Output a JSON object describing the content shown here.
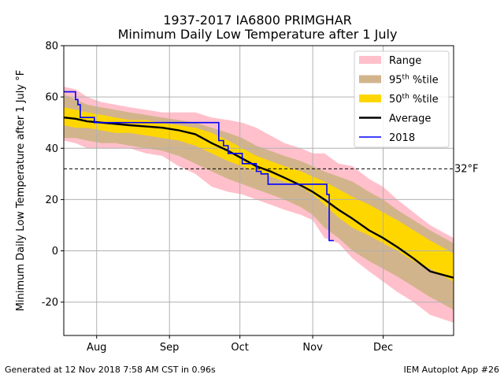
{
  "chart_data": {
    "type": "area",
    "title": "1937-2017 IA6800 PRIMGHAR",
    "subtitle": "Minimum Daily Low Temperature after 1 July",
    "xlabel": "",
    "ylabel": "Minimum Daily Low Temperature after 1 July °F",
    "ylim": [
      -33,
      80
    ],
    "yticks": [
      -20,
      0,
      20,
      40,
      60,
      80
    ],
    "xrange": [
      "2018-07-18",
      "2018-12-31"
    ],
    "xticks": [
      {
        "date": "2018-08-01",
        "label": "Aug"
      },
      {
        "date": "2018-09-01",
        "label": "Sep"
      },
      {
        "date": "2018-10-01",
        "label": "Oct"
      },
      {
        "date": "2018-11-01",
        "label": "Nov"
      },
      {
        "date": "2018-12-01",
        "label": "Dec"
      }
    ],
    "grid": true,
    "legend_position": "top-right",
    "reference_line": {
      "y": 32,
      "label": "32°F"
    },
    "colors": {
      "range": "#ffc0cb",
      "p95": "#d2b48c",
      "p50": "#ffd700",
      "average": "#000000",
      "current": "#0000ff"
    },
    "legend": [
      {
        "key": "range",
        "label": "Range",
        "kind": "patch"
      },
      {
        "key": "p95",
        "label": "95th %tile",
        "sup": "th",
        "kind": "patch"
      },
      {
        "key": "p50",
        "label": "50th %tile",
        "sup": "th",
        "kind": "patch"
      },
      {
        "key": "average",
        "label": "Average",
        "kind": "line"
      },
      {
        "key": "current",
        "label": "2018",
        "kind": "line"
      }
    ],
    "series": [
      {
        "name": "Range",
        "key": "range",
        "x": [
          "2018-07-18",
          "2018-07-23",
          "2018-07-28",
          "2018-08-03",
          "2018-08-09",
          "2018-08-15",
          "2018-08-22",
          "2018-08-29",
          "2018-09-05",
          "2018-09-12",
          "2018-09-19",
          "2018-09-26",
          "2018-10-02",
          "2018-10-08",
          "2018-10-14",
          "2018-10-20",
          "2018-10-27",
          "2018-11-01",
          "2018-11-06",
          "2018-11-12",
          "2018-11-18",
          "2018-11-25",
          "2018-12-01",
          "2018-12-07",
          "2018-12-14",
          "2018-12-21",
          "2018-12-31"
        ],
        "low": [
          43,
          42,
          40,
          40,
          40,
          40,
          38,
          37,
          33,
          30,
          25,
          23,
          22,
          20,
          18,
          16,
          14,
          12,
          5,
          3,
          -3,
          -8,
          -12,
          -16,
          -20,
          -25,
          -28
        ],
        "high": [
          64,
          63,
          60,
          58,
          57,
          56,
          55,
          54,
          54,
          54,
          52,
          51,
          50,
          48,
          45,
          42,
          40,
          38,
          38,
          34,
          33,
          28,
          25,
          20,
          15,
          10,
          5
        ]
      },
      {
        "name": "95th %tile",
        "key": "p95",
        "x": [
          "2018-07-18",
          "2018-07-23",
          "2018-07-28",
          "2018-08-03",
          "2018-08-09",
          "2018-08-15",
          "2018-08-22",
          "2018-08-29",
          "2018-09-05",
          "2018-09-12",
          "2018-09-19",
          "2018-09-26",
          "2018-10-02",
          "2018-10-08",
          "2018-10-14",
          "2018-10-20",
          "2018-10-27",
          "2018-11-01",
          "2018-11-06",
          "2018-11-12",
          "2018-11-18",
          "2018-11-25",
          "2018-12-01",
          "2018-12-07",
          "2018-12-14",
          "2018-12-21",
          "2018-12-31"
        ],
        "low": [
          44,
          44,
          43,
          42,
          42,
          41,
          40,
          39,
          37,
          34,
          31,
          28,
          26,
          24,
          22,
          20,
          17,
          14,
          9,
          5,
          0,
          -4,
          -7,
          -10,
          -14,
          -18,
          -23
        ],
        "high": [
          61,
          59,
          57,
          56,
          55,
          54,
          53,
          52,
          51,
          50,
          48,
          46,
          44,
          41,
          39,
          37,
          35,
          33,
          31,
          29,
          27,
          23,
          20,
          16,
          12,
          8,
          3
        ]
      },
      {
        "name": "50th %tile",
        "key": "p50",
        "x": [
          "2018-07-18",
          "2018-07-23",
          "2018-07-28",
          "2018-08-03",
          "2018-08-09",
          "2018-08-15",
          "2018-08-22",
          "2018-08-29",
          "2018-09-05",
          "2018-09-12",
          "2018-09-19",
          "2018-09-26",
          "2018-10-02",
          "2018-10-08",
          "2018-10-14",
          "2018-10-20",
          "2018-10-27",
          "2018-11-01",
          "2018-11-06",
          "2018-11-12",
          "2018-11-18",
          "2018-11-25",
          "2018-12-01",
          "2018-12-07",
          "2018-12-14",
          "2018-12-21",
          "2018-12-31"
        ],
        "low": [
          49,
          48,
          48,
          47,
          46,
          46,
          45,
          44,
          43,
          41,
          38,
          35,
          33,
          31,
          29,
          27,
          25,
          22,
          18,
          13,
          9,
          6,
          3,
          0,
          -4,
          -7,
          -12
        ],
        "high": [
          56,
          55,
          54,
          53,
          52,
          51,
          51,
          50,
          49,
          48,
          46,
          43,
          40,
          37,
          35,
          33,
          31,
          29,
          27,
          24,
          21,
          18,
          15,
          12,
          8,
          4,
          -1
        ]
      },
      {
        "name": "Average",
        "key": "average",
        "x": [
          "2018-07-18",
          "2018-07-23",
          "2018-07-28",
          "2018-08-03",
          "2018-08-09",
          "2018-08-15",
          "2018-08-22",
          "2018-08-29",
          "2018-09-05",
          "2018-09-12",
          "2018-09-19",
          "2018-09-26",
          "2018-10-02",
          "2018-10-08",
          "2018-10-14",
          "2018-10-20",
          "2018-10-27",
          "2018-11-01",
          "2018-11-06",
          "2018-11-12",
          "2018-11-18",
          "2018-11-25",
          "2018-12-01",
          "2018-12-07",
          "2018-12-14",
          "2018-12-21",
          "2018-12-31"
        ],
        "values": [
          52,
          51.5,
          50.5,
          50,
          49.5,
          49,
          48.5,
          48,
          47,
          45.5,
          42,
          39,
          36,
          33,
          31,
          28.5,
          25.5,
          23,
          20,
          16,
          12.5,
          8,
          5,
          1.5,
          -3,
          -8,
          -10.5
        ]
      },
      {
        "name": "2018",
        "key": "current",
        "x": [
          "2018-07-18",
          "2018-07-22",
          "2018-07-23",
          "2018-07-24",
          "2018-07-25",
          "2018-07-30",
          "2018-07-31",
          "2018-09-21",
          "2018-09-22",
          "2018-09-24",
          "2018-09-26",
          "2018-10-02",
          "2018-10-08",
          "2018-10-10",
          "2018-10-13",
          "2018-10-14",
          "2018-11-03",
          "2018-11-05",
          "2018-11-07",
          "2018-11-08",
          "2018-11-10"
        ],
        "values": [
          62,
          62,
          59,
          57,
          52,
          52,
          50,
          50,
          43,
          41,
          38,
          34,
          31,
          30,
          26,
          26,
          26,
          26,
          22,
          4,
          4
        ],
        "step": true
      }
    ]
  },
  "footer": {
    "left": "Generated at 12 Nov 2018 7:58 AM CST in 0.96s",
    "right": "IEM Autoplot App #26"
  }
}
